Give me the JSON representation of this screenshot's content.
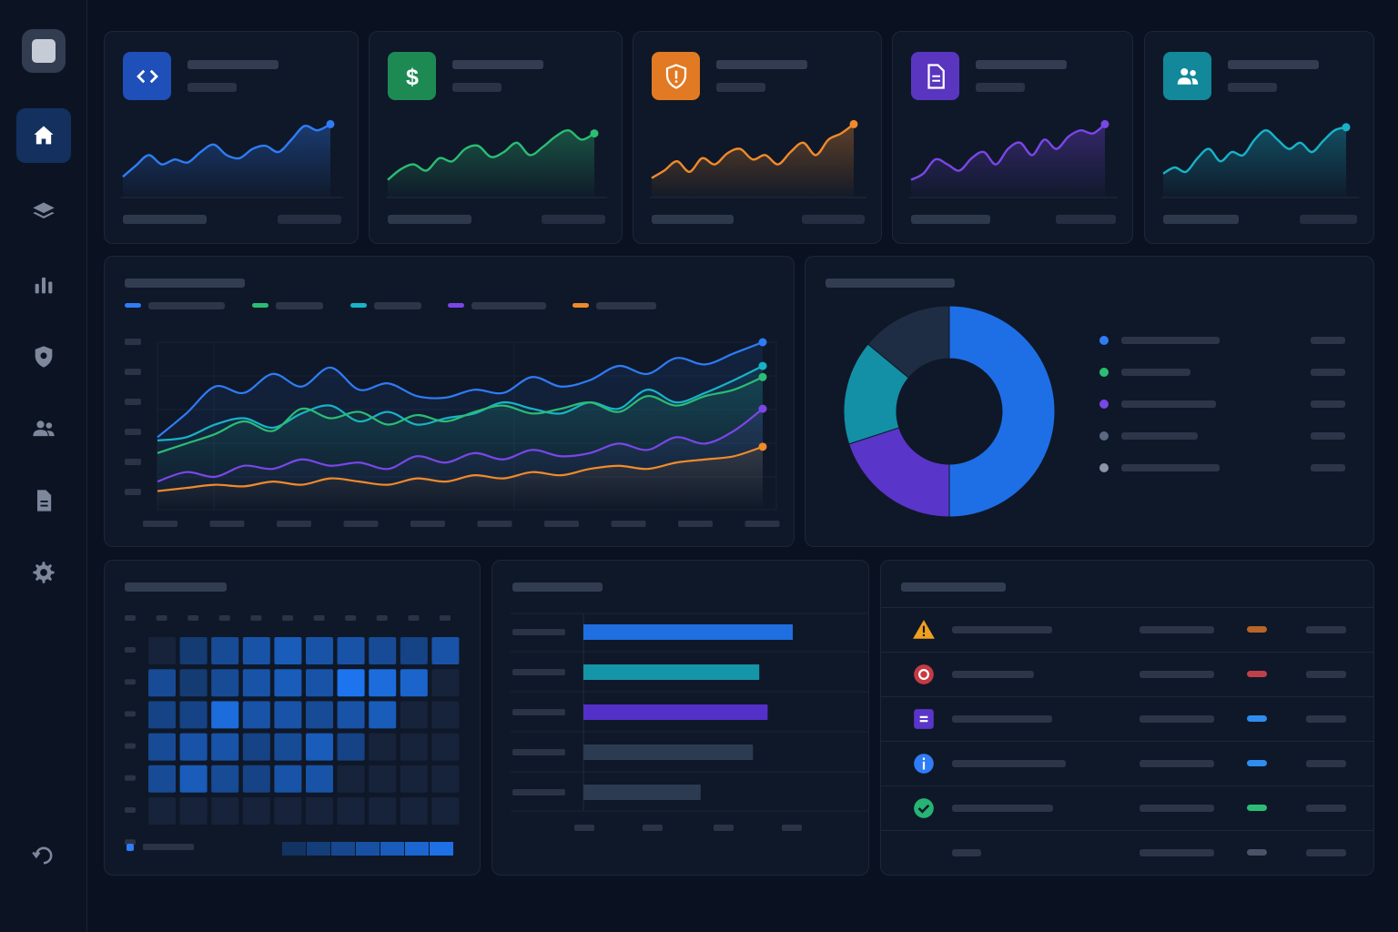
{
  "colors": {
    "blue": "#2f7cf6",
    "green": "#2bbd74",
    "orange": "#f08a2b",
    "purple": "#7a46e8",
    "teal": "#17b3c9",
    "red": "#d9444f",
    "background": "#0a1120",
    "card": "#0f1828"
  },
  "sidebar": {
    "logo": "app-logo",
    "items": [
      {
        "icon": "home-icon",
        "active": true
      },
      {
        "icon": "layers-icon",
        "active": false
      },
      {
        "icon": "bar-chart-icon",
        "active": false
      },
      {
        "icon": "shield-icon",
        "active": false
      },
      {
        "icon": "users-icon",
        "active": false
      },
      {
        "icon": "document-icon",
        "active": false
      },
      {
        "icon": "gear-icon",
        "active": false
      }
    ],
    "footer_icon": "history-icon"
  },
  "kpi_cards": [
    {
      "icon": "code-icon",
      "color": "#2f7cf6",
      "trend": [
        0.1,
        0.28,
        0.45,
        0.3,
        0.38,
        0.33,
        0.5,
        0.62,
        0.45,
        0.4,
        0.55,
        0.6,
        0.5,
        0.7,
        0.92,
        0.85,
        0.95
      ]
    },
    {
      "icon": "dollar-icon",
      "color": "#2bbd74",
      "trend": [
        0.05,
        0.22,
        0.3,
        0.2,
        0.4,
        0.35,
        0.55,
        0.6,
        0.42,
        0.5,
        0.65,
        0.45,
        0.58,
        0.75,
        0.85,
        0.7,
        0.8
      ]
    },
    {
      "icon": "shield-alert-icon",
      "color": "#f08a2b",
      "trend": [
        0.08,
        0.2,
        0.35,
        0.18,
        0.4,
        0.3,
        0.48,
        0.55,
        0.38,
        0.45,
        0.3,
        0.5,
        0.65,
        0.45,
        0.7,
        0.8,
        0.95
      ]
    },
    {
      "icon": "document-icon",
      "color": "#7a46e8",
      "trend": [
        0.05,
        0.15,
        0.38,
        0.3,
        0.2,
        0.4,
        0.5,
        0.3,
        0.55,
        0.65,
        0.45,
        0.7,
        0.55,
        0.75,
        0.85,
        0.8,
        0.95
      ]
    },
    {
      "icon": "users-icon",
      "color": "#17b3c9",
      "trend": [
        0.15,
        0.25,
        0.18,
        0.4,
        0.55,
        0.35,
        0.5,
        0.45,
        0.7,
        0.85,
        0.7,
        0.55,
        0.65,
        0.5,
        0.68,
        0.85,
        0.9
      ]
    }
  ],
  "line_chart": {
    "chart_data": {
      "type": "line",
      "series": [
        {
          "color": "#2f7cf6",
          "values": [
            0.4,
            0.55,
            0.72,
            0.68,
            0.8,
            0.72,
            0.84,
            0.7,
            0.74,
            0.66,
            0.65,
            0.7,
            0.68,
            0.78,
            0.72,
            0.76,
            0.85,
            0.8,
            0.9,
            0.86,
            0.93,
            1.0
          ]
        },
        {
          "color": "#17b3c9",
          "values": [
            0.38,
            0.4,
            0.48,
            0.52,
            0.46,
            0.55,
            0.6,
            0.5,
            0.56,
            0.48,
            0.52,
            0.55,
            0.62,
            0.58,
            0.55,
            0.62,
            0.58,
            0.7,
            0.62,
            0.68,
            0.76,
            0.85
          ]
        },
        {
          "color": "#2bbd74",
          "values": [
            0.3,
            0.36,
            0.42,
            0.5,
            0.44,
            0.58,
            0.52,
            0.56,
            0.48,
            0.54,
            0.5,
            0.56,
            0.6,
            0.55,
            0.58,
            0.62,
            0.56,
            0.66,
            0.6,
            0.66,
            0.7,
            0.78
          ]
        },
        {
          "color": "#7a46e8",
          "values": [
            0.12,
            0.18,
            0.15,
            0.22,
            0.2,
            0.26,
            0.22,
            0.24,
            0.2,
            0.28,
            0.24,
            0.3,
            0.26,
            0.32,
            0.28,
            0.3,
            0.36,
            0.32,
            0.4,
            0.36,
            0.44,
            0.58
          ]
        },
        {
          "color": "#f08a2b",
          "values": [
            0.06,
            0.08,
            0.1,
            0.09,
            0.12,
            0.1,
            0.14,
            0.12,
            0.1,
            0.14,
            0.12,
            0.16,
            0.14,
            0.18,
            0.16,
            0.2,
            0.22,
            0.2,
            0.24,
            0.26,
            0.28,
            0.34
          ]
        }
      ],
      "ylim": [
        0,
        1
      ]
    }
  },
  "donut_chart": {
    "chart_data": {
      "type": "pie",
      "slices": [
        {
          "color": "#1e6fe6",
          "value": 50
        },
        {
          "color": "#5a35c9",
          "value": 20
        },
        {
          "color": "#138fa6",
          "value": 16
        },
        {
          "color": "#1e2d44",
          "value": 14
        }
      ]
    },
    "legend_dots": [
      "#2f7cf6",
      "#2bbd74",
      "#7a46e8",
      "#5b6a82",
      "#8a96aa"
    ]
  },
  "heatmap": {
    "chart_data": {
      "type": "heatmap",
      "rows": 6,
      "cols": 10,
      "values": [
        [
          0.0,
          0.3,
          0.5,
          0.6,
          0.7,
          0.6,
          0.6,
          0.5,
          0.4,
          0.6
        ],
        [
          0.5,
          0.3,
          0.5,
          0.6,
          0.7,
          0.6,
          1.0,
          0.9,
          0.8,
          0.1
        ],
        [
          0.4,
          0.4,
          0.9,
          0.6,
          0.6,
          0.5,
          0.6,
          0.7,
          0.1,
          0.1
        ],
        [
          0.5,
          0.6,
          0.6,
          0.4,
          0.5,
          0.7,
          0.4,
          0.1,
          0.1,
          0.1
        ],
        [
          0.5,
          0.7,
          0.5,
          0.4,
          0.6,
          0.6,
          0.1,
          0.1,
          0.1,
          0.1
        ],
        [
          0.05,
          0.05,
          0.05,
          0.05,
          0.05,
          0.05,
          0.05,
          0.05,
          0.05,
          0.05
        ]
      ]
    }
  },
  "bar_chart": {
    "chart_data": {
      "type": "bar",
      "orientation": "horizontal",
      "values": [
        1.0,
        0.84,
        0.88,
        0.81,
        0.56
      ],
      "colors": [
        "#1f6fe0",
        "#1595a8",
        "#5330c8",
        "#2c3a52",
        "#2c3a52"
      ]
    }
  },
  "alerts": {
    "rows": [
      {
        "icon": "warning-icon",
        "pill_color": "#b8642a"
      },
      {
        "icon": "error-icon",
        "pill_color": "#c0404a"
      },
      {
        "icon": "note-icon",
        "pill_color": "#2f8cf0"
      },
      {
        "icon": "info-icon",
        "pill_color": "#2f8cf0"
      },
      {
        "icon": "check-icon",
        "pill_color": "#2bbd74"
      },
      {
        "icon": "",
        "pill_color": "#4a5468"
      }
    ]
  }
}
